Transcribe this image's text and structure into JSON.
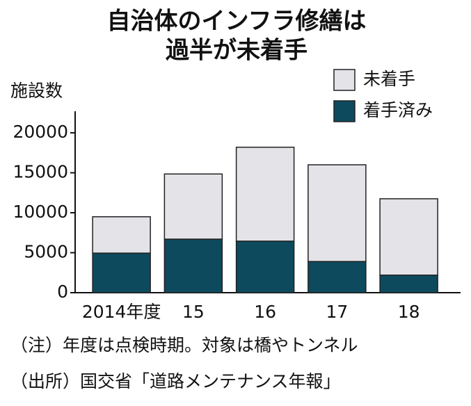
{
  "chart_data": {
    "type": "stacked_bar",
    "title_lines": [
      "自治体のインフラ修繕は",
      "過半が未着手"
    ],
    "y_label": "施設数",
    "categories": [
      "2014年度",
      "15",
      "16",
      "17",
      "18"
    ],
    "series": [
      {
        "name": "着手済み",
        "color": "#0d4a5e",
        "values": [
          4950,
          6700,
          6450,
          3900,
          2200
        ]
      },
      {
        "name": "未着手",
        "color": "#e4e3e8",
        "values": [
          4550,
          8150,
          11750,
          12100,
          9550
        ]
      }
    ],
    "ylim": [
      0,
      22700
    ],
    "yticks": [
      0,
      5000,
      10000,
      15000,
      20000
    ],
    "notes": [
      "（注）年度は点検時期。対象は橋やトンネル",
      "（出所）国交省「道路メンテナンス年報」"
    ]
  }
}
